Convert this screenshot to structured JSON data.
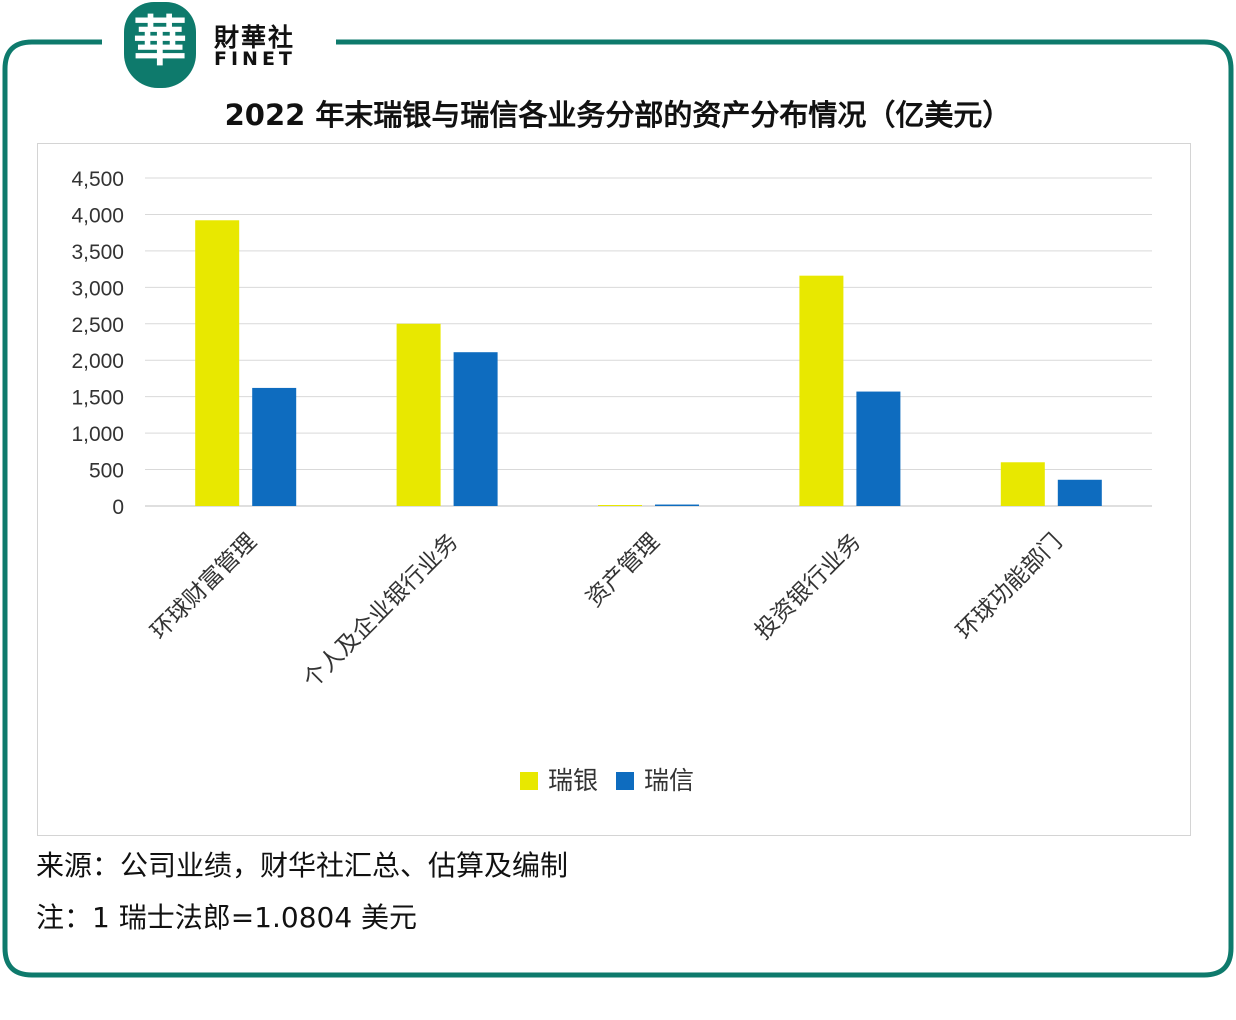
{
  "brand": {
    "logo_char": "華",
    "name_cn": "財華社",
    "name_en": "FINET",
    "accent_color": "#0e7a6c"
  },
  "chart_data": {
    "type": "bar",
    "title": "2022 年末瑞银与瑞信各业务分部的资产分布情况（亿美元）",
    "categories": [
      "环球财富管理",
      "个人及企业银行业务",
      "资产管理",
      "投资银行业务",
      "环球功能部门"
    ],
    "series": [
      {
        "name": "瑞银",
        "color": "#e8e800",
        "values": [
          3920,
          2500,
          0,
          3160,
          600
        ]
      },
      {
        "name": "瑞信",
        "color": "#0e6cbf",
        "values": [
          1620,
          2110,
          20,
          1570,
          360
        ]
      }
    ],
    "ylim": [
      0,
      4500
    ],
    "yticks": [
      "0",
      "500",
      "1,000",
      "1,500",
      "2,000",
      "2,500",
      "3,000",
      "3,500",
      "4,000",
      "4,500"
    ],
    "ytick_values": [
      0,
      500,
      1000,
      1500,
      2000,
      2500,
      3000,
      3500,
      4000,
      4500
    ],
    "grid": true,
    "legend_position": "bottom"
  },
  "notes": {
    "source": "来源：公司业绩，财华社汇总、估算及编制",
    "exchange": "注：1 瑞士法郎=1.0804 美元"
  }
}
